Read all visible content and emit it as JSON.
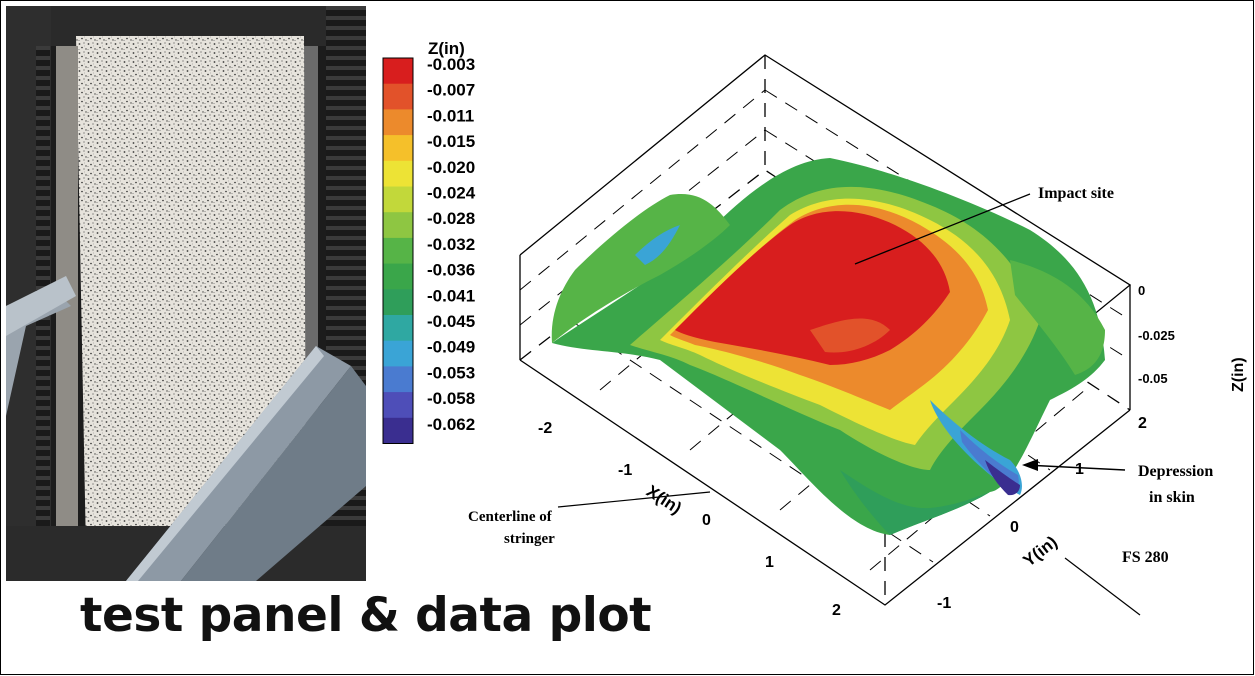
{
  "caption": "test panel & data plot",
  "chart_data": {
    "type": "surface3d",
    "colorbar": {
      "title": "Z(in)",
      "levels": [
        -0.003,
        -0.007,
        -0.011,
        -0.015,
        -0.02,
        -0.024,
        -0.028,
        -0.032,
        -0.036,
        -0.041,
        -0.045,
        -0.049,
        -0.053,
        -0.058,
        -0.062
      ],
      "labels": [
        "-0.003",
        "-0.007",
        "-0.011",
        "-0.015",
        "-0.020",
        "-0.024",
        "-0.028",
        "-0.032",
        "-0.036",
        "-0.041",
        "-0.045",
        "-0.049",
        "-0.053",
        "-0.058",
        "-0.062"
      ],
      "colors": [
        "#d81e1e",
        "#e2522a",
        "#ec8a2c",
        "#f5c02a",
        "#ede335",
        "#c2d83a",
        "#8ec642",
        "#56b447",
        "#3aa64a",
        "#2f9e5a",
        "#2fa8a2",
        "#3aa4d6",
        "#4a7bd0",
        "#4e4eb8",
        "#3a2e90"
      ]
    },
    "x_axis": {
      "label": "X(in)",
      "ticks": [
        "-2",
        "-1",
        "0",
        "1",
        "2"
      ],
      "range": [
        -2.5,
        2.5
      ]
    },
    "y_axis": {
      "label": "Y(in)",
      "ticks": [
        "-1",
        "0",
        "1",
        "2"
      ],
      "range": [
        -2,
        2
      ]
    },
    "z_axis": {
      "label": "Z(in)",
      "ticks": [
        "0",
        "-0.025",
        "-0.05"
      ],
      "range": [
        -0.065,
        0
      ]
    },
    "annotations": {
      "impact_site": "Impact site",
      "depression_line1": "Depression",
      "depression_line2": "in skin",
      "centerline_line1": "Centerline of",
      "centerline_line2": "stringer",
      "fs": "FS 280"
    }
  }
}
